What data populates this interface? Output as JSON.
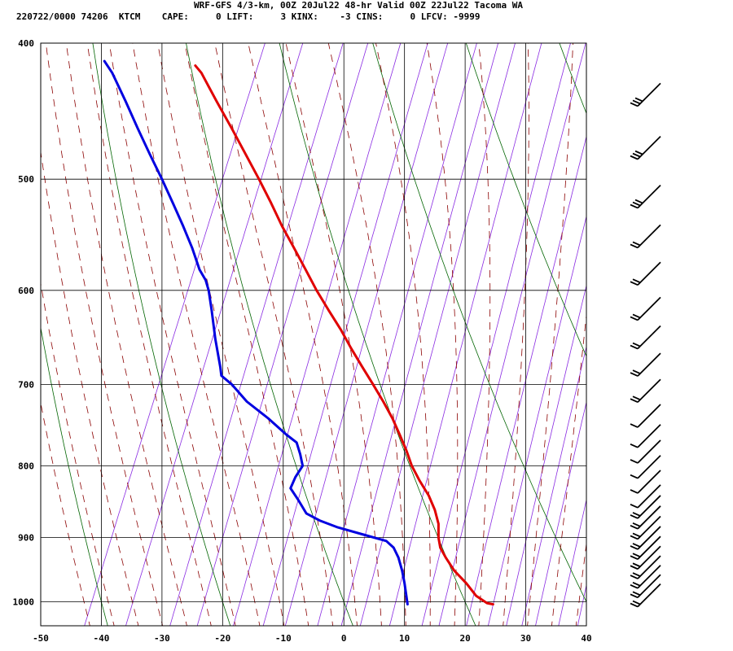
{
  "header": {
    "title": "WRF-GFS 4/3-km, 00Z 20Jul22 48-hr Valid 00Z 22Jul22 Tacoma WA",
    "info": "220722/0000 74206  KTCM    CAPE:     0 LIFT:     3 KINX:    -3 CINS:     0 LFCV: -9999"
  },
  "chart_data": {
    "type": "line",
    "title": "WRF-GFS 4/3-km, 00Z 20Jul22 48-hr Valid 00Z 22Jul22 Tacoma WA",
    "xlabel": "",
    "ylabel": "",
    "x_ticks": [
      -50,
      -40,
      -30,
      -20,
      -10,
      0,
      10,
      20,
      30,
      40
    ],
    "y_ticks": [
      400,
      500,
      600,
      700,
      800,
      900,
      1000
    ],
    "xlim": [
      -50,
      40
    ],
    "ylim": [
      1040,
      400
    ],
    "y_scale": "log-pressure",
    "skew": "skew-T",
    "grid": true,
    "background_lines": {
      "isotherms": "#000000",
      "dry_adiabats": "#006400",
      "moist_adiabats": "#8b0000",
      "mixing_ratio": "#8a2be2"
    },
    "series": [
      {
        "color": "#e00000",
        "points": [
          {
            "p": 1004,
            "x": 24.6
          },
          {
            "p": 1002,
            "x": 23.6
          },
          {
            "p": 990,
            "x": 21.8
          },
          {
            "p": 970,
            "x": 20.2
          },
          {
            "p": 950,
            "x": 18.2
          },
          {
            "p": 930,
            "x": 16.8
          },
          {
            "p": 915,
            "x": 15.9
          },
          {
            "p": 900,
            "x": 15.6
          },
          {
            "p": 880,
            "x": 15.6
          },
          {
            "p": 860,
            "x": 15.0
          },
          {
            "p": 840,
            "x": 14.0
          },
          {
            "p": 820,
            "x": 12.5
          },
          {
            "p": 800,
            "x": 11.2
          },
          {
            "p": 780,
            "x": 10.3
          },
          {
            "p": 760,
            "x": 9.2
          },
          {
            "p": 740,
            "x": 8.0
          },
          {
            "p": 720,
            "x": 6.5
          },
          {
            "p": 700,
            "x": 4.8
          },
          {
            "p": 680,
            "x": 3.0
          },
          {
            "p": 660,
            "x": 1.2
          },
          {
            "p": 640,
            "x": -0.5
          },
          {
            "p": 620,
            "x": -2.5
          },
          {
            "p": 600,
            "x": -4.5
          },
          {
            "p": 580,
            "x": -6.3
          },
          {
            "p": 560,
            "x": -8.2
          },
          {
            "p": 540,
            "x": -10.2
          },
          {
            "p": 520,
            "x": -12.0
          },
          {
            "p": 500,
            "x": -14.0
          },
          {
            "p": 480,
            "x": -16.2
          },
          {
            "p": 460,
            "x": -18.5
          },
          {
            "p": 440,
            "x": -21.0
          },
          {
            "p": 420,
            "x": -23.5
          },
          {
            "p": 415,
            "x": -24.5
          }
        ]
      },
      {
        "color": "#0000e0",
        "points": [
          {
            "p": 1004,
            "x": 10.5
          },
          {
            "p": 990,
            "x": 10.3
          },
          {
            "p": 970,
            "x": 10.0
          },
          {
            "p": 950,
            "x": 9.6
          },
          {
            "p": 930,
            "x": 9.0
          },
          {
            "p": 915,
            "x": 8.2
          },
          {
            "p": 905,
            "x": 7.0
          },
          {
            "p": 895,
            "x": 3.0
          },
          {
            "p": 885,
            "x": -1.0
          },
          {
            "p": 875,
            "x": -4.0
          },
          {
            "p": 865,
            "x": -6.2
          },
          {
            "p": 845,
            "x": -7.6
          },
          {
            "p": 830,
            "x": -8.8
          },
          {
            "p": 815,
            "x": -8.0
          },
          {
            "p": 800,
            "x": -6.8
          },
          {
            "p": 785,
            "x": -7.2
          },
          {
            "p": 770,
            "x": -7.8
          },
          {
            "p": 760,
            "x": -9.5
          },
          {
            "p": 740,
            "x": -12.5
          },
          {
            "p": 720,
            "x": -16.0
          },
          {
            "p": 700,
            "x": -18.5
          },
          {
            "p": 690,
            "x": -20.2
          },
          {
            "p": 680,
            "x": -20.4
          },
          {
            "p": 650,
            "x": -21.2
          },
          {
            "p": 620,
            "x": -21.8
          },
          {
            "p": 600,
            "x": -22.3
          },
          {
            "p": 590,
            "x": -22.8
          },
          {
            "p": 580,
            "x": -23.8
          },
          {
            "p": 560,
            "x": -25.0
          },
          {
            "p": 540,
            "x": -26.5
          },
          {
            "p": 520,
            "x": -28.2
          },
          {
            "p": 500,
            "x": -30.0
          },
          {
            "p": 480,
            "x": -32.0
          },
          {
            "p": 460,
            "x": -34.0
          },
          {
            "p": 440,
            "x": -36.0
          },
          {
            "p": 420,
            "x": -38.2
          },
          {
            "p": 412,
            "x": -39.5
          }
        ]
      }
    ],
    "wind_barbs": [
      {
        "p": 1000,
        "barbs": 2
      },
      {
        "p": 985,
        "barbs": 2
      },
      {
        "p": 970,
        "barbs": 2
      },
      {
        "p": 955,
        "barbs": 2
      },
      {
        "p": 940,
        "barbs": 2
      },
      {
        "p": 925,
        "barbs": 2
      },
      {
        "p": 910,
        "barbs": 2
      },
      {
        "p": 895,
        "barbs": 2
      },
      {
        "p": 880,
        "barbs": 2
      },
      {
        "p": 865,
        "barbs": 2
      },
      {
        "p": 850,
        "barbs": 1
      },
      {
        "p": 830,
        "barbs": 1
      },
      {
        "p": 810,
        "barbs": 1
      },
      {
        "p": 790,
        "barbs": 1
      },
      {
        "p": 770,
        "barbs": 1
      },
      {
        "p": 745,
        "barbs": 1
      },
      {
        "p": 715,
        "barbs": 2
      },
      {
        "p": 685,
        "barbs": 2
      },
      {
        "p": 655,
        "barbs": 2
      },
      {
        "p": 625,
        "barbs": 2
      },
      {
        "p": 590,
        "barbs": 2
      },
      {
        "p": 555,
        "barbs": 2
      },
      {
        "p": 520,
        "barbs": 3
      },
      {
        "p": 480,
        "barbs": 3
      },
      {
        "p": 440,
        "barbs": 3
      }
    ]
  }
}
